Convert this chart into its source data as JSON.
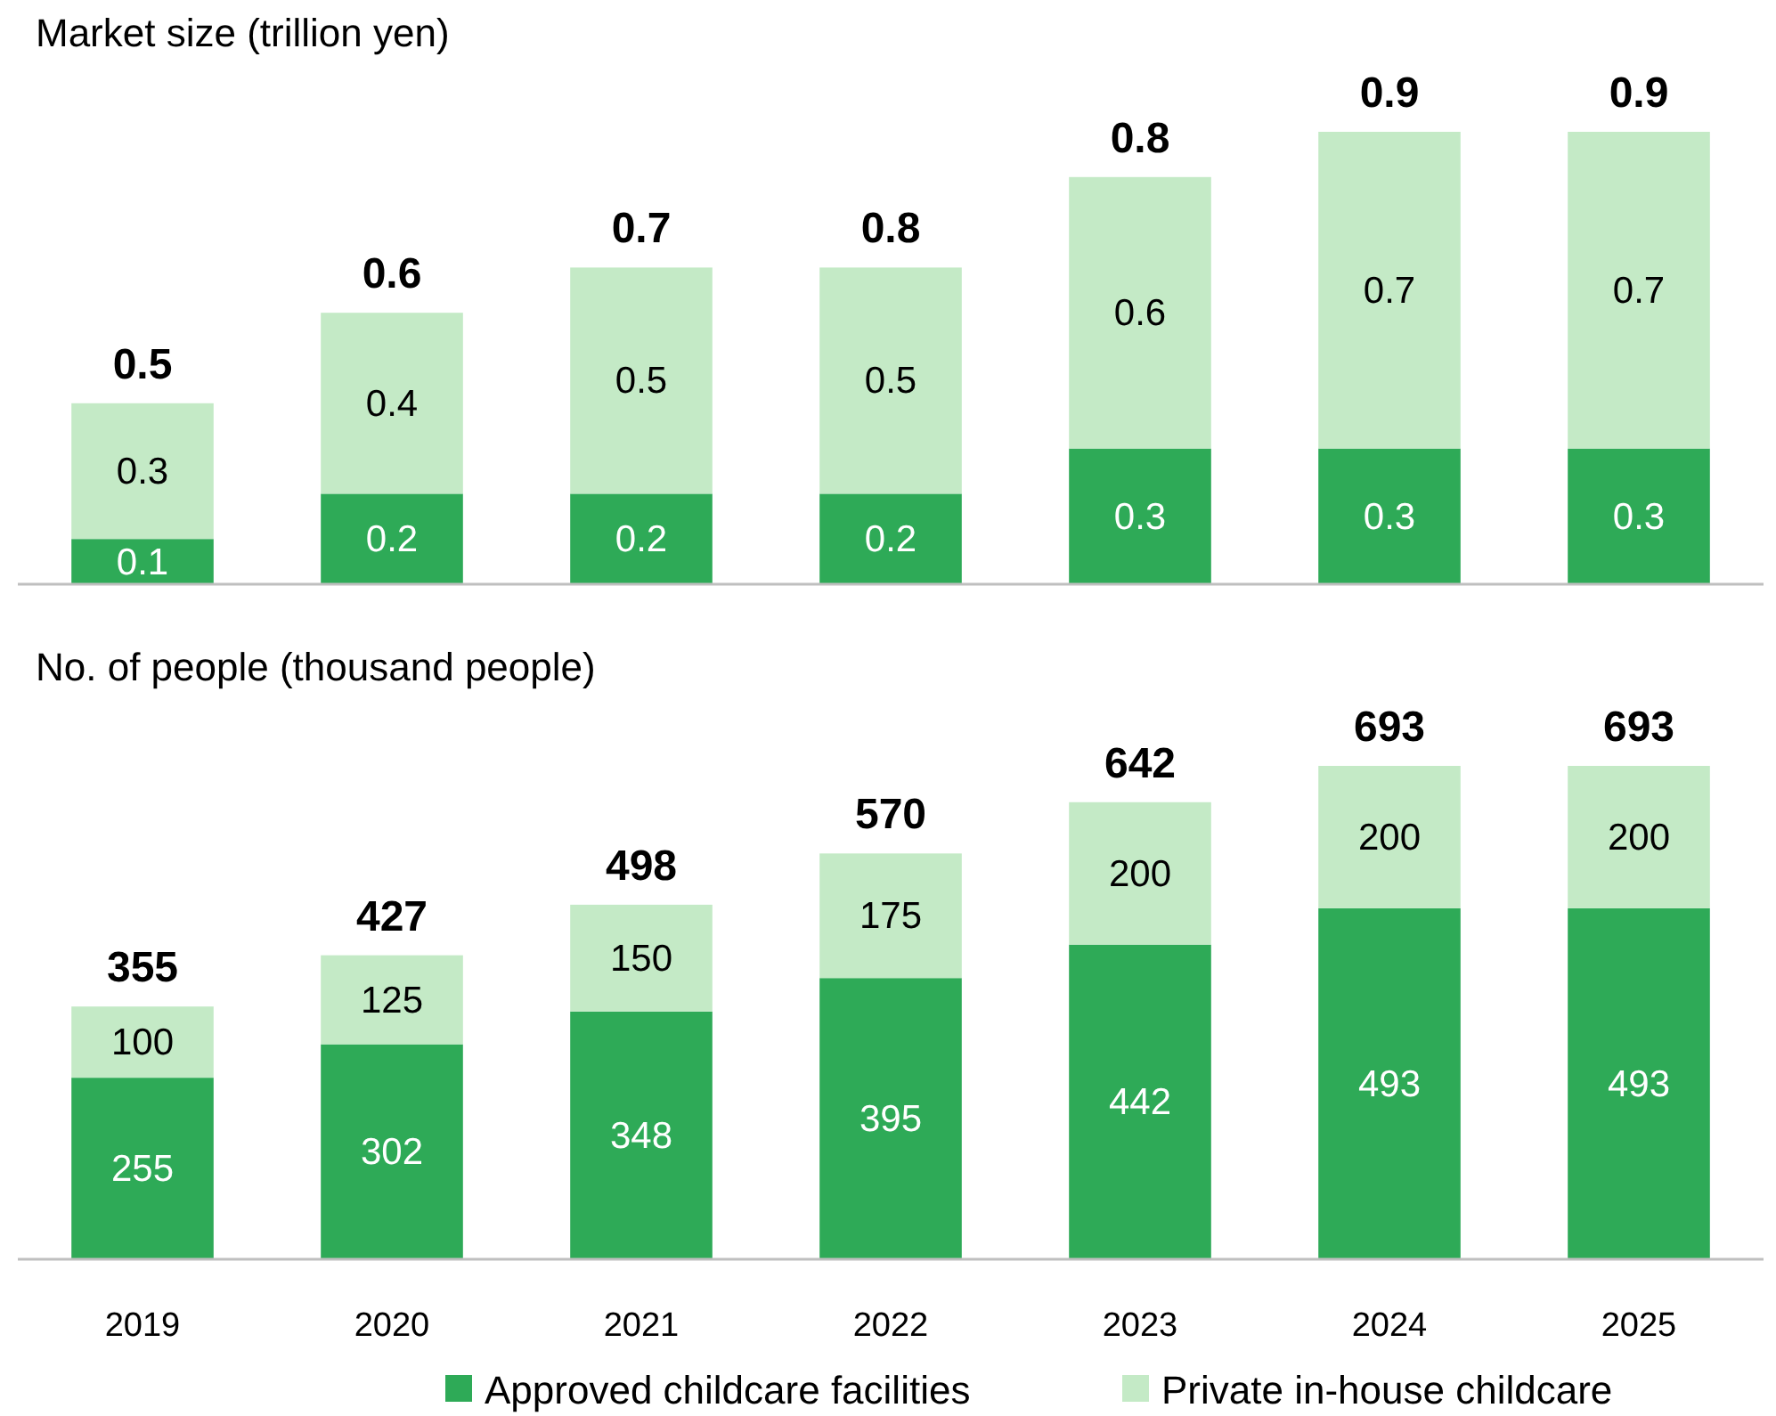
{
  "chart_data": [
    {
      "type": "bar",
      "title": "Market size (trillion yen)",
      "stacked": true,
      "data_labels": true,
      "legend": false,
      "categories": [
        null,
        null,
        null,
        null,
        null,
        null,
        null
      ],
      "series": [
        {
          "color": "#2eaa57",
          "values": [
            0.1,
            0.2,
            0.2,
            0.2,
            0.3,
            0.3,
            0.3
          ]
        },
        {
          "color": "#c4eac6",
          "values": [
            0.3,
            0.4,
            0.5,
            0.5,
            0.6,
            0.7,
            0.7
          ]
        }
      ],
      "totals": [
        "0.5",
        "0.6",
        "0.7",
        "0.8",
        "0.8",
        "0.9",
        "0.9"
      ]
    },
    {
      "type": "bar",
      "title": "No. of people (thousand people)",
      "stacked": true,
      "data_labels": true,
      "tick_labels": "x",
      "legend": "bottom",
      "categories": [
        "2019",
        "2020",
        "2021",
        "2022",
        "2023",
        "2024",
        "2025"
      ],
      "series": [
        {
          "name": "Approved childcare facilities",
          "color": "#2eaa57",
          "values": [
            255,
            302,
            348,
            395,
            442,
            493,
            493
          ]
        },
        {
          "name": "Private in-house childcare",
          "color": "#c4eac6",
          "values": [
            100,
            125,
            150,
            175,
            200,
            200,
            200
          ]
        }
      ],
      "totals": [
        "355",
        "427",
        "498",
        "570",
        "642",
        "693",
        "693"
      ]
    }
  ]
}
